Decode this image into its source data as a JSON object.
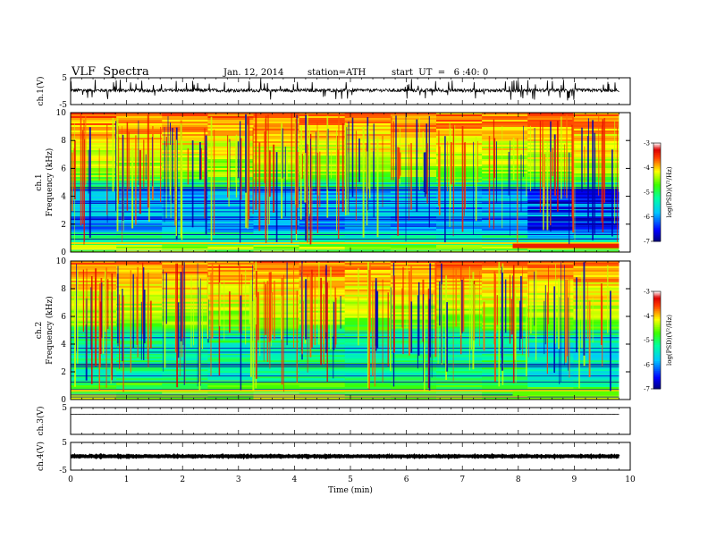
{
  "header": {
    "title": "VLF  Spectra",
    "date": "Jan. 12, 2014",
    "station": "station=ATH",
    "start": "start  UT  =   6 :40: 0"
  },
  "chart_data": [
    {
      "type": "line",
      "ylabel": "ch.1(V)",
      "ylim": [
        -5,
        5
      ],
      "yticks": [
        "5",
        "-5"
      ],
      "signal_level": 0.3,
      "signal_spread": 1.2
    },
    {
      "type": "heatmap",
      "ylabel_top": "ch.1",
      "ylabel": "Frequency  (kHz)",
      "ylim": [
        0,
        10
      ],
      "yticks": [
        "0",
        "2",
        "4",
        "6",
        "8",
        "10"
      ],
      "colorbar": {
        "label": "log(PSD)(V²/Hz)",
        "range": [
          -7,
          -3
        ],
        "ticks": [
          "-7",
          "-6",
          "-5",
          "-4",
          "-3"
        ]
      }
    },
    {
      "type": "heatmap",
      "ylabel_top": "ch.2",
      "ylabel": "Frequency  (kHz)",
      "ylim": [
        0,
        10
      ],
      "yticks": [
        "0",
        "2",
        "4",
        "6",
        "8",
        "10"
      ],
      "colorbar": {
        "label": "log(PSD)(V²/Hz)",
        "range": [
          -7,
          -3
        ],
        "ticks": [
          "-7",
          "-6",
          "-5",
          "-4",
          "-3"
        ]
      }
    },
    {
      "type": "line",
      "ylabel": "ch.3(V)",
      "ylim": [
        -5,
        5
      ],
      "yticks": [
        "5"
      ],
      "signal_level": 2.5,
      "signal_spread": 0.05
    },
    {
      "type": "line",
      "ylabel": "ch.4(V)",
      "ylim": [
        -5,
        5
      ],
      "yticks": [
        "5",
        "-5"
      ],
      "signal_level": 0.0,
      "signal_spread": 0.3
    }
  ],
  "xaxis": {
    "xlabel": "Time  (min)",
    "xlim": [
      0,
      10
    ],
    "ticks": [
      "0",
      "1",
      "2",
      "3",
      "4",
      "5",
      "6",
      "7",
      "8",
      "9",
      "10"
    ],
    "data_end": 9.8
  }
}
